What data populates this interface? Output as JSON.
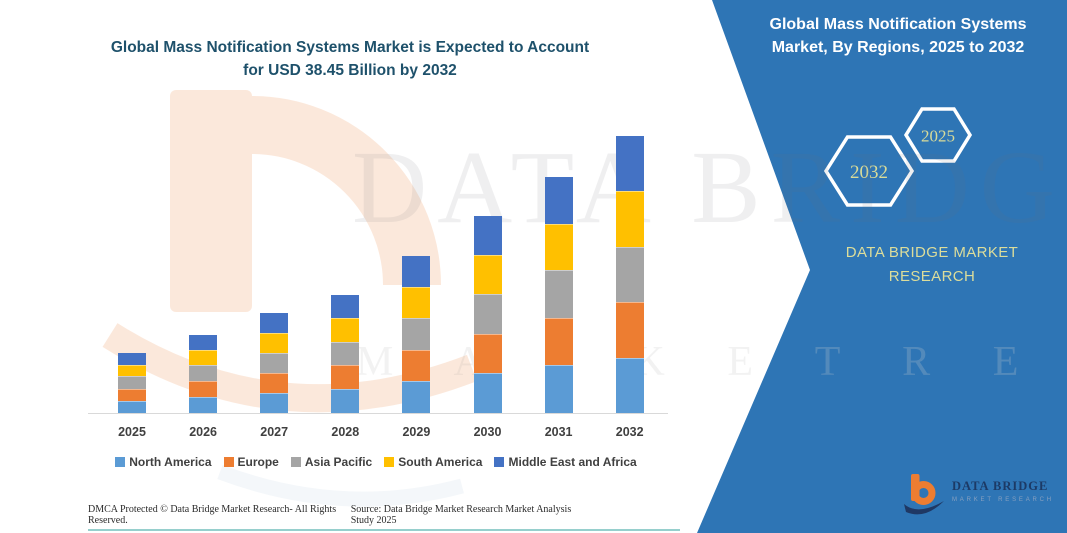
{
  "page": {
    "title_line1": "Global Mass Notification Systems Market is Expected to Account",
    "title_line2": "for USD 38.45 Billion by 2032"
  },
  "side_panel": {
    "heading_line1": "Global Mass Notification Systems",
    "heading_line2": "Market, By Regions, 2025 to 2032",
    "hexagon_back_label": "2032",
    "hexagon_front_label": "2025",
    "brand_line1": "DATA BRIDGE MARKET",
    "brand_line2": "RESEARCH",
    "panel_color": "#2E75B5",
    "accent_text_color": "#DCDD9B"
  },
  "watermark": {
    "line1": "DATA BRIDGE",
    "line2": "M A R K E T  R E S E A R C H"
  },
  "logo": {
    "name": "DATA BRIDGE",
    "tagline": "MARKET RESEARCH"
  },
  "footer": {
    "left": "DMCA Protected © Data Bridge Market Research-  All Rights Reserved.",
    "right": "Source: Data Bridge Market Research  Market Analysis Study 2025"
  },
  "chart_data": {
    "type": "bar",
    "stacked": true,
    "title": "Global Mass Notification Systems Market is Expected to Account for USD 38.45 Billion by 2032",
    "unit": "USD Billion",
    "categories": [
      "2025",
      "2026",
      "2027",
      "2028",
      "2029",
      "2030",
      "2031",
      "2032"
    ],
    "series": [
      {
        "name": "North America",
        "color": "#5B9BD5",
        "values": [
          1.7,
          2.2,
          2.8,
          3.3,
          4.4,
          5.5,
          6.6,
          7.7
        ]
      },
      {
        "name": "Europe",
        "color": "#ED7D31",
        "values": [
          1.7,
          2.2,
          2.8,
          3.3,
          4.4,
          5.5,
          6.6,
          7.7
        ]
      },
      {
        "name": "Asia Pacific",
        "color": "#A5A5A5",
        "values": [
          1.7,
          2.2,
          2.8,
          3.3,
          4.4,
          5.5,
          6.6,
          7.7
        ]
      },
      {
        "name": "South America",
        "color": "#FFC000",
        "values": [
          1.6,
          2.15,
          2.75,
          3.25,
          4.3,
          5.4,
          6.5,
          7.7
        ]
      },
      {
        "name": "Middle East and Africa",
        "color": "#4472C4",
        "values": [
          1.6,
          2.15,
          2.75,
          3.25,
          4.3,
          5.4,
          6.5,
          7.65
        ]
      }
    ],
    "totals": [
      8.3,
      10.9,
      13.9,
      16.4,
      21.8,
      27.3,
      32.8,
      38.45
    ],
    "xlabel": "",
    "ylabel": "",
    "ylim": [
      0,
      40
    ],
    "grid": false,
    "legend_position": "bottom"
  }
}
